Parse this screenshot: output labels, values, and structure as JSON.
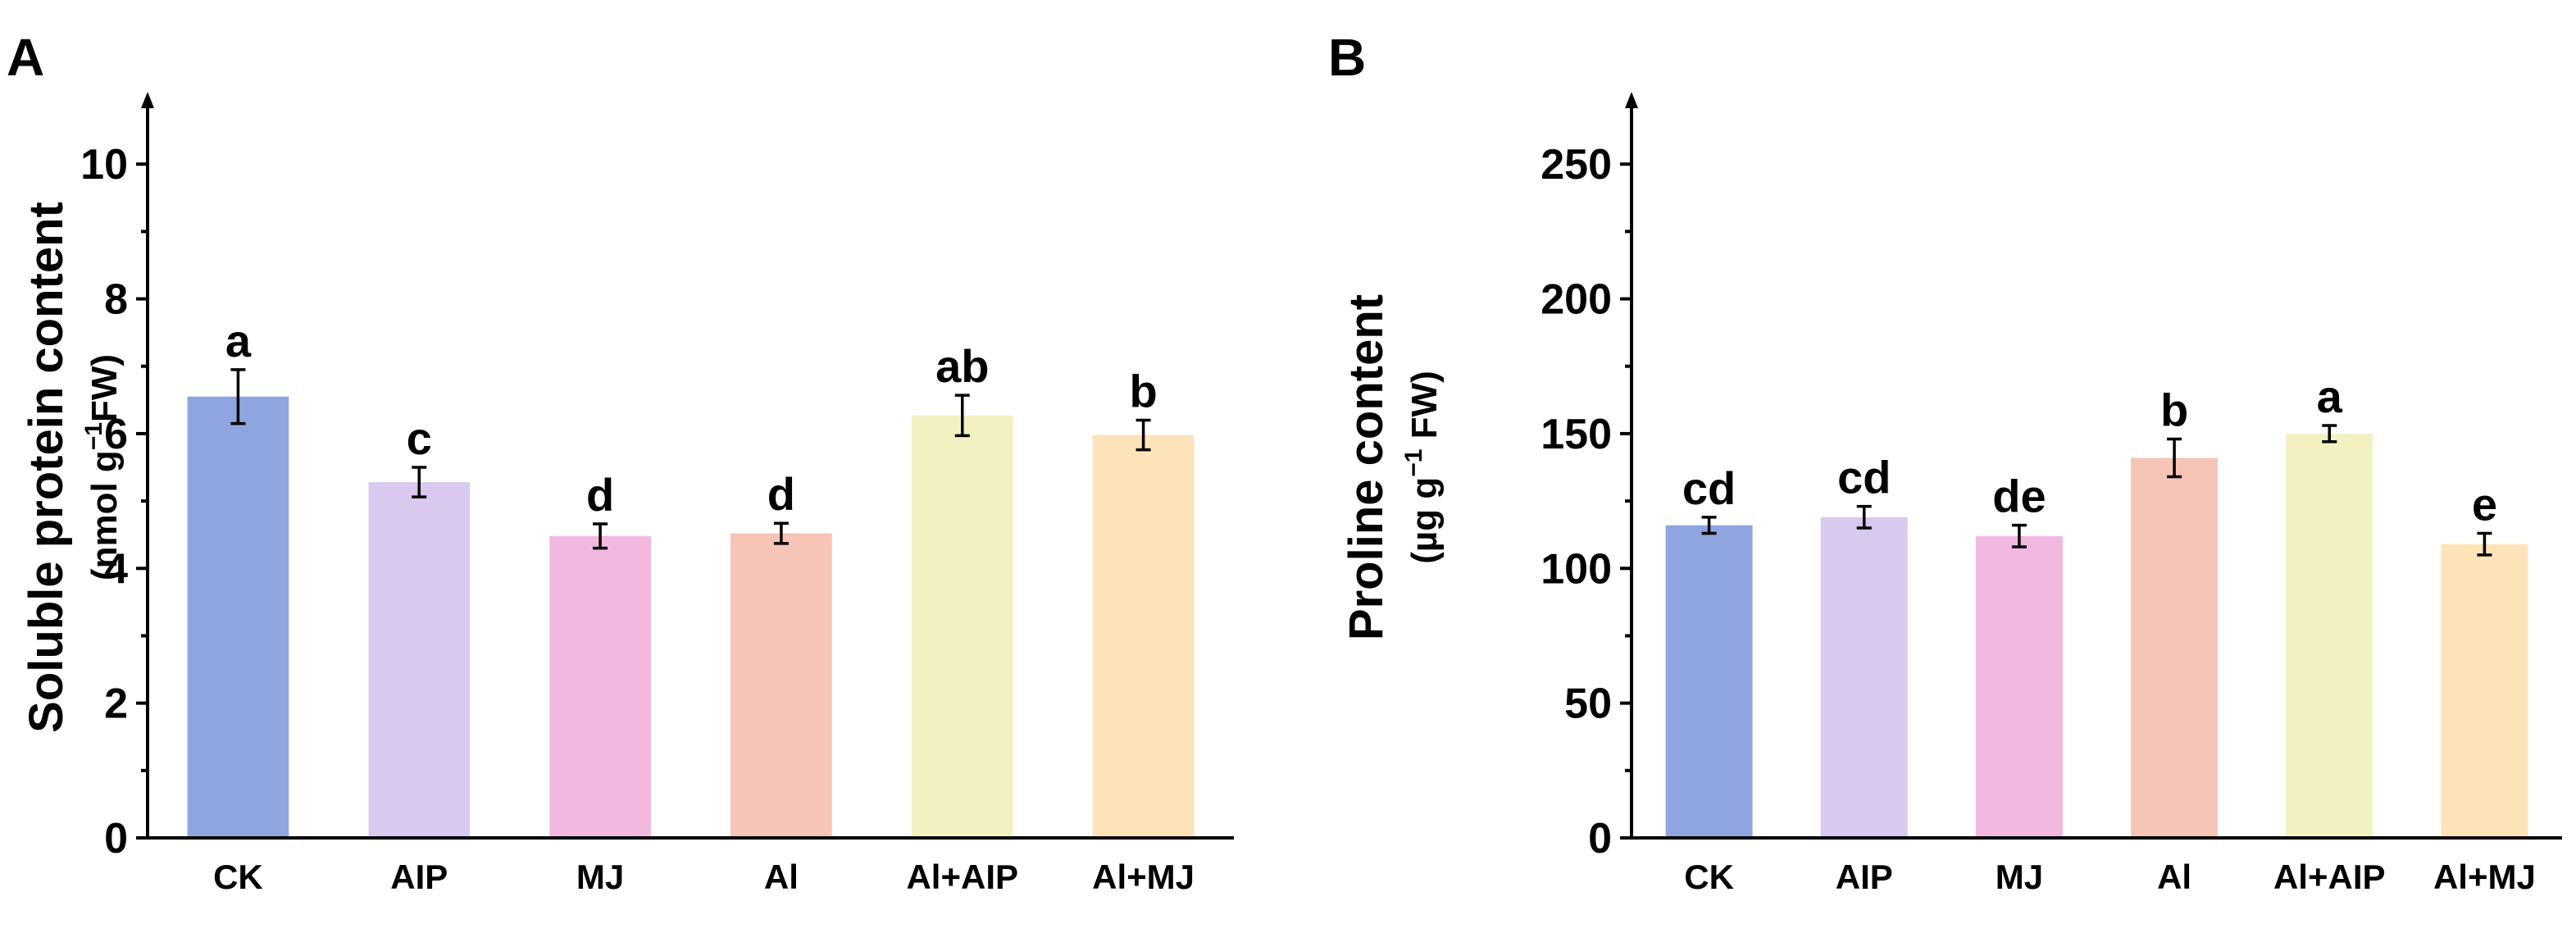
{
  "chart_data": [
    {
      "type": "bar",
      "panel": "A",
      "categories": [
        "CK",
        "AIP",
        "MJ",
        "Al",
        "Al+AIP",
        "Al+MJ"
      ],
      "values": [
        6.55,
        5.28,
        4.48,
        4.52,
        6.27,
        5.98
      ],
      "errors": [
        0.4,
        0.22,
        0.18,
        0.15,
        0.3,
        0.22
      ],
      "significance": [
        "a",
        "c",
        "d",
        "d",
        "ab",
        "b"
      ],
      "colors": [
        "#8ea5df",
        "#d8c9ee",
        "#f2b8e0",
        "#f6c5b8",
        "#f2f1c2",
        "#fde3b8"
      ],
      "ylabel": "Soluble protein content",
      "ylabel_unit_prefix": "(nmol g",
      "ylabel_unit_sup": "−1",
      "ylabel_unit_suffix": "FW)",
      "ylim": [
        0,
        11
      ],
      "yticks": [
        0,
        2,
        4,
        6,
        8,
        10
      ],
      "ytick_labels": [
        "0",
        "2",
        "4",
        "6",
        "8",
        "10"
      ]
    },
    {
      "type": "bar",
      "panel": "B",
      "categories": [
        "CK",
        "AIP",
        "MJ",
        "Al",
        "Al+AIP",
        "Al+MJ"
      ],
      "values": [
        116,
        119,
        112,
        141,
        150,
        109
      ],
      "errors": [
        3,
        4,
        4,
        7,
        3,
        4
      ],
      "significance": [
        "cd",
        "cd",
        "de",
        "b",
        "a",
        "e"
      ],
      "colors": [
        "#8ea5df",
        "#d8c9ee",
        "#f2b8e0",
        "#f6c5b8",
        "#f2f1c2",
        "#fde3b8"
      ],
      "ylabel": "Proline content",
      "ylabel_unit_prefix": "(µg g",
      "ylabel_unit_sup": "−1",
      "ylabel_unit_suffix": " FW)",
      "ylim": [
        0,
        275
      ],
      "yticks": [
        0,
        50,
        100,
        150,
        200,
        250
      ],
      "ytick_labels": [
        "0",
        "50",
        "100",
        "150",
        "200",
        "250"
      ]
    }
  ]
}
